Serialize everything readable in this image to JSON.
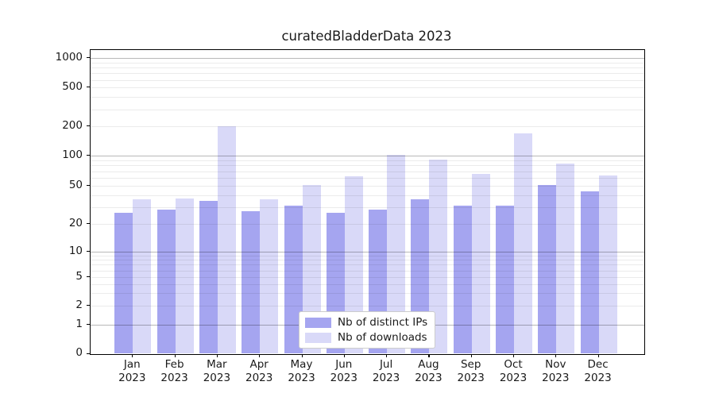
{
  "chart_data": {
    "type": "bar",
    "title": "curatedBladderData 2023",
    "categories": [
      "Jan",
      "Feb",
      "Mar",
      "Apr",
      "May",
      "Jun",
      "Jul",
      "Aug",
      "Sep",
      "Oct",
      "Nov",
      "Dec"
    ],
    "x_tick_second_line": "2023",
    "series": [
      {
        "name": "Nb of distinct IPs",
        "color": "#a5a5f0",
        "values": [
          26,
          28,
          35,
          27,
          31,
          26,
          28,
          36,
          31,
          31,
          51,
          44
        ]
      },
      {
        "name": "Nb of downloads",
        "color": "#d9d9f8",
        "values": [
          36,
          37,
          200,
          36,
          51,
          62,
          102,
          92,
          66,
          170,
          83,
          63
        ]
      }
    ],
    "y_ticks": [
      0,
      1,
      2,
      5,
      10,
      20,
      50,
      100,
      200,
      500,
      1000
    ],
    "y_scale": "symlog",
    "ylim": [
      0,
      1200
    ],
    "xlabel": "",
    "ylabel": "",
    "grid": true,
    "legend_position": "lower center",
    "background_color": "#ffffff",
    "text_color": "#1a1a1a"
  }
}
